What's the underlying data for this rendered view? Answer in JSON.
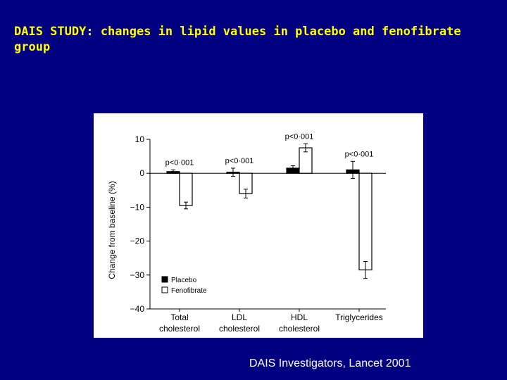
{
  "slide": {
    "title": "DAIS STUDY: changes in lipid values in placebo and fenofibrate group",
    "citation": "DAIS Investigators, Lancet 2001"
  },
  "colors": {
    "background": "#000080",
    "title": "#ffff00",
    "placebo_bar": "#000000",
    "fenofibrate_bar": "#ffffff"
  },
  "chart_data": {
    "type": "bar",
    "ylabel": "Change from baseline (%)",
    "ylim": [
      -40,
      10
    ],
    "yticks": [
      10,
      0,
      -10,
      -20,
      -30,
      -40
    ],
    "ytick_labels": [
      "10",
      "0",
      "−10",
      "−20",
      "−30",
      "−40"
    ],
    "categories": [
      {
        "line1": "Total",
        "line2": "cholesterol"
      },
      {
        "line1": "LDL",
        "line2": "cholesterol"
      },
      {
        "line1": "HDL",
        "line2": "cholesterol"
      },
      {
        "line1": "Triglycerides",
        "line2": ""
      }
    ],
    "series": [
      {
        "name": "Placebo",
        "values": [
          0.5,
          0.3,
          1.5,
          1.0
        ],
        "errors": [
          0.5,
          1.2,
          0.7,
          2.5
        ]
      },
      {
        "name": "Fenofibrate",
        "values": [
          -9.5,
          -6.0,
          7.5,
          -28.5
        ],
        "errors": [
          1.0,
          1.3,
          1.2,
          2.5
        ]
      }
    ],
    "annotations": [
      "p<0·001",
      "p<0·001",
      "p<0·001",
      "p<0·001"
    ],
    "legend": {
      "placement": "bottom-left",
      "entries": [
        "Placebo",
        "Fenofibrate"
      ]
    }
  }
}
